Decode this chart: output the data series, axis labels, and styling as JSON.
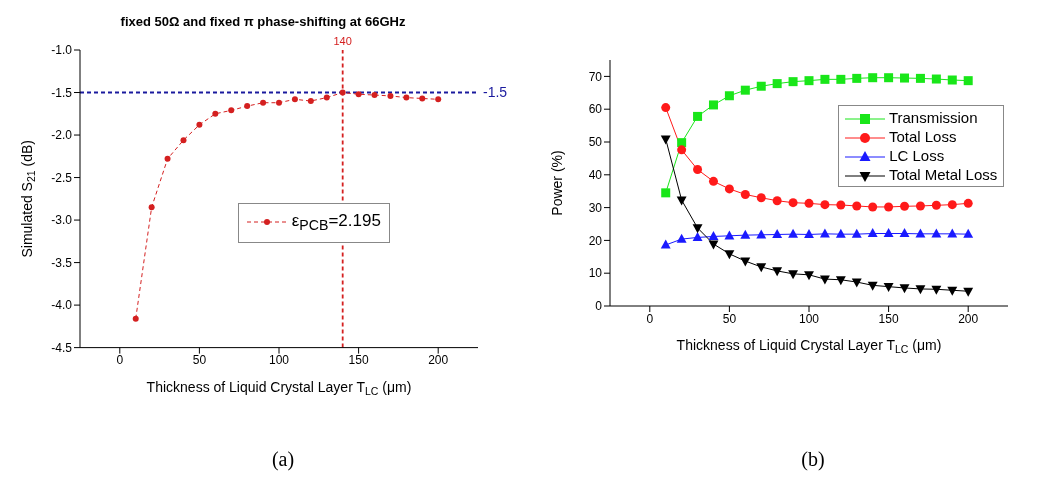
{
  "chart_data": [
    {
      "type": "line",
      "title": "fixed 50Ω and fixed π phase-shifting at 66GHz",
      "xlabel": "Thickness of Liquid Crystal Layer T$_{LC}$ (μm)",
      "ylabel": "Simulated S$_{21}$ (dB)",
      "x": [
        10,
        20,
        30,
        40,
        50,
        60,
        70,
        80,
        90,
        100,
        110,
        120,
        130,
        140,
        150,
        160,
        170,
        180,
        190,
        200
      ],
      "series": [
        {
          "name": "ε$_{PCB}$=2.195",
          "color": "#d42020",
          "values": [
            -4.16,
            -2.85,
            -2.28,
            -2.06,
            -1.88,
            -1.75,
            -1.71,
            -1.66,
            -1.62,
            -1.62,
            -1.58,
            -1.6,
            -1.56,
            -1.5,
            -1.52,
            -1.53,
            -1.54,
            -1.56,
            -1.57,
            -1.58
          ]
        }
      ],
      "xlim": [
        -25,
        225
      ],
      "xticks": [
        0,
        50,
        100,
        150,
        200
      ],
      "ylim": [
        -4.5,
        -1.0
      ],
      "yticks": [
        -4.5,
        {
          "value": -4.0,
          "label": "-4.0"
        },
        -3.5,
        {
          "value": -3.0,
          "label": "-3.0"
        },
        -2.5,
        {
          "value": -2.0,
          "label": "-2.0"
        },
        -1.5,
        {
          "value": -1.0,
          "label": "-1.0"
        }
      ],
      "ref_lines": [
        {
          "axis": "y",
          "value": -1.5,
          "label": "-1.5",
          "color": "#1a1a9e",
          "line_style": "dashed"
        },
        {
          "axis": "x",
          "value": 140,
          "label": "140",
          "color": "#d42020",
          "line_style": "dashed"
        }
      ],
      "marker": "circle",
      "line_style": "dashed",
      "legend": "center",
      "annotations": [
        "(a)"
      ]
    },
    {
      "type": "line",
      "xlabel": "Thickness of Liquid Crystal Layer T$_{LC}$ (μm)",
      "ylabel": "Power (%)",
      "x": [
        10,
        20,
        30,
        40,
        50,
        60,
        70,
        80,
        90,
        100,
        110,
        120,
        130,
        140,
        150,
        160,
        170,
        180,
        190,
        200
      ],
      "series": [
        {
          "name": "Transmission",
          "color": "#19e619",
          "marker": "square",
          "values": [
            34.5,
            49.8,
            57.8,
            61.3,
            64.1,
            65.8,
            67.0,
            67.8,
            68.4,
            68.7,
            69.1,
            69.1,
            69.4,
            69.6,
            69.6,
            69.5,
            69.4,
            69.2,
            68.9,
            68.7
          ]
        },
        {
          "name": "Total Loss",
          "color": "#ff1a1a",
          "marker": "circle",
          "values": [
            60.5,
            47.6,
            41.6,
            38.0,
            35.7,
            34.0,
            33.0,
            32.1,
            31.5,
            31.3,
            30.9,
            30.8,
            30.5,
            30.2,
            30.2,
            30.4,
            30.5,
            30.7,
            30.9,
            31.3
          ]
        },
        {
          "name": "LC Loss",
          "color": "#1a1aff",
          "marker": "triangle",
          "values": [
            18.6,
            20.4,
            20.9,
            21.2,
            21.4,
            21.6,
            21.7,
            21.8,
            21.9,
            21.8,
            22.0,
            21.9,
            21.9,
            22.1,
            22.1,
            22.1,
            22.0,
            22.0,
            22.0,
            21.9
          ]
        },
        {
          "name": "Total Metal Loss",
          "color": "#000000",
          "marker": "triangle-down",
          "values": [
            50.9,
            32.3,
            23.8,
            18.9,
            15.9,
            13.7,
            11.9,
            10.7,
            9.8,
            9.5,
            8.2,
            8.0,
            7.3,
            6.3,
            5.9,
            5.5,
            5.2,
            5.1,
            4.8,
            4.5
          ]
        }
      ],
      "xlim": [
        -25,
        225
      ],
      "xticks": [
        0,
        50,
        100,
        150,
        200
      ],
      "ylim": [
        0,
        75
      ],
      "yticks": [
        0,
        10,
        20,
        30,
        40,
        50,
        60,
        70
      ],
      "legend": "top right",
      "line_style": "solid",
      "annotations": [
        "(b)"
      ]
    }
  ]
}
